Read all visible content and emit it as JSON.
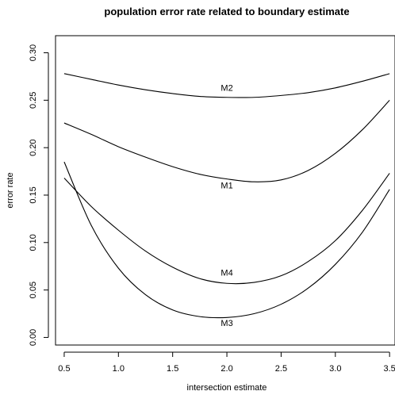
{
  "chart_data": {
    "type": "line",
    "title": "population error rate related to boundary estimate",
    "xlabel": "intersection estimate",
    "ylabel": "error rate",
    "xlim": [
      0.42,
      3.55
    ],
    "ylim": [
      -0.008,
      0.318
    ],
    "xticks": [
      "0.5",
      "1.0",
      "1.5",
      "2.0",
      "2.5",
      "3.0",
      "3.5"
    ],
    "yticks": [
      "0.00",
      "0.05",
      "0.10",
      "0.15",
      "0.20",
      "0.25",
      "0.30"
    ],
    "grid": false,
    "legend": "none",
    "series": [
      {
        "name": "M2",
        "x": [
          0.5,
          0.75,
          1.0,
          1.25,
          1.5,
          1.75,
          2.0,
          2.25,
          2.5,
          2.75,
          3.0,
          3.25,
          3.5
        ],
        "y": [
          0.278,
          0.272,
          0.266,
          0.261,
          0.257,
          0.254,
          0.253,
          0.253,
          0.255,
          0.258,
          0.263,
          0.27,
          0.278
        ],
        "label_x": 2.0,
        "label_y": 0.26
      },
      {
        "name": "M1",
        "x": [
          0.5,
          0.75,
          1.0,
          1.25,
          1.5,
          1.75,
          2.0,
          2.25,
          2.5,
          2.75,
          3.0,
          3.25,
          3.5
        ],
        "y": [
          0.226,
          0.214,
          0.201,
          0.19,
          0.18,
          0.172,
          0.167,
          0.164,
          0.166,
          0.176,
          0.194,
          0.219,
          0.25
        ],
        "label_x": 2.0,
        "label_y": 0.157
      },
      {
        "name": "M4",
        "x": [
          0.5,
          0.75,
          1.0,
          1.25,
          1.5,
          1.75,
          2.0,
          2.25,
          2.5,
          2.75,
          3.0,
          3.25,
          3.5
        ],
        "y": [
          0.168,
          0.138,
          0.113,
          0.091,
          0.074,
          0.062,
          0.057,
          0.058,
          0.065,
          0.08,
          0.102,
          0.134,
          0.173
        ],
        "label_x": 2.0,
        "label_y": 0.065
      },
      {
        "name": "M3",
        "x": [
          0.5,
          0.75,
          1.0,
          1.25,
          1.5,
          1.75,
          2.0,
          2.25,
          2.5,
          2.75,
          3.0,
          3.25,
          3.5
        ],
        "y": [
          0.185,
          0.118,
          0.073,
          0.045,
          0.029,
          0.022,
          0.021,
          0.025,
          0.035,
          0.052,
          0.077,
          0.111,
          0.156
        ],
        "label_x": 2.0,
        "label_y": 0.012
      }
    ]
  }
}
